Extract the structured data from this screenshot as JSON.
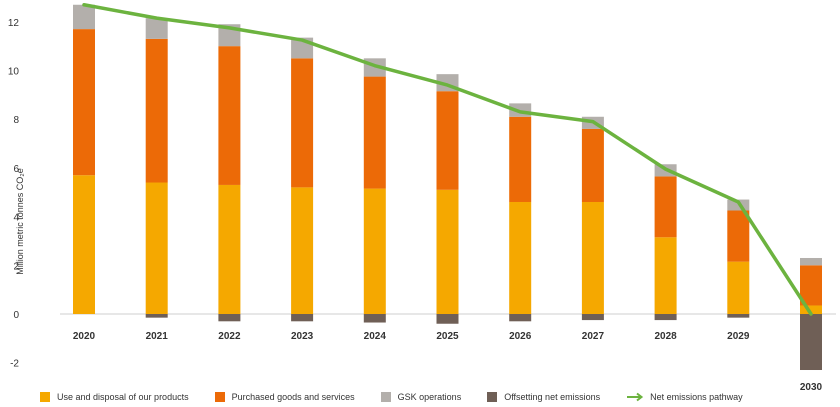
{
  "chart_data": {
    "type": "bar",
    "stacked": true,
    "title": "",
    "xlabel": "",
    "ylabel": "Million metric tonnes CO₂e",
    "ylim": [
      -2.3,
      12.6
    ],
    "yticks": [
      "-2",
      "0",
      "2",
      "4",
      "6",
      "8",
      "10",
      "12"
    ],
    "categories": [
      "2020",
      "2021",
      "2022",
      "2023",
      "2024",
      "2025",
      "2026",
      "2027",
      "2028",
      "2029",
      "2030"
    ],
    "series": [
      {
        "name": "Use and disposal of our products",
        "color": "#f5a800",
        "values": [
          5.7,
          5.4,
          5.3,
          5.2,
          5.15,
          5.1,
          4.6,
          4.6,
          3.15,
          2.15,
          0.35
        ]
      },
      {
        "name": "Purchased goods and services",
        "color": "#ec6a07",
        "values": [
          6.0,
          5.9,
          5.7,
          5.3,
          4.6,
          4.05,
          3.5,
          3.0,
          2.5,
          2.1,
          1.65
        ]
      },
      {
        "name": "GSK operations",
        "color": "#b3afab",
        "values": [
          1.0,
          0.85,
          0.9,
          0.85,
          0.75,
          0.7,
          0.55,
          0.5,
          0.5,
          0.45,
          0.3
        ]
      },
      {
        "name": "Offsetting net emissions",
        "color": "#6f5f56",
        "values": [
          0,
          -0.15,
          -0.3,
          -0.3,
          -0.35,
          -0.4,
          -0.3,
          -0.25,
          -0.25,
          -0.15,
          -2.3
        ]
      }
    ],
    "line": {
      "name": "Net emissions pathway",
      "color": "#6cb33f",
      "values": [
        12.7,
        12.15,
        11.75,
        11.25,
        10.2,
        9.4,
        8.3,
        7.9,
        5.95,
        4.6,
        0.0
      ]
    },
    "legend_position": "bottom"
  }
}
